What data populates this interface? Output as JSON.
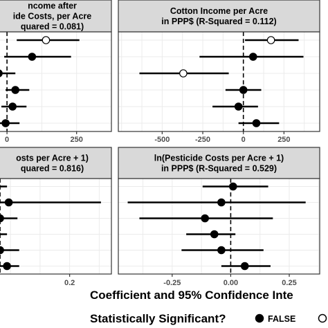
{
  "chart_data": [
    {
      "type": "scatter",
      "panel": "top-left",
      "title_lines": [
        "ncome after",
        "ide Costs, per Acre",
        "quared = 0.081)"
      ],
      "x_ticks": [
        0,
        250
      ],
      "x_ticks_text": [
        "0",
        "250"
      ],
      "xlim": [
        -50,
        375
      ],
      "grid": true,
      "points": [
        {
          "row": 1,
          "est": 140,
          "lo": 35,
          "hi": 260,
          "significant": true
        },
        {
          "row": 2,
          "est": 90,
          "lo": -10,
          "hi": 230,
          "significant": false
        },
        {
          "row": 3,
          "est": -30,
          "lo": -100,
          "hi": 30,
          "significant": false
        },
        {
          "row": 4,
          "est": 30,
          "lo": -5,
          "hi": 80,
          "significant": false
        },
        {
          "row": 5,
          "est": 20,
          "lo": -20,
          "hi": 70,
          "significant": false
        },
        {
          "row": 6,
          "est": -5,
          "lo": -40,
          "hi": 45,
          "significant": false
        }
      ]
    },
    {
      "type": "scatter",
      "panel": "top-right",
      "title_lines": [
        "Cotton Income per Acre",
        "in PPP$ (R-Squared = 0.112)"
      ],
      "x_ticks": [
        -500,
        -250,
        0,
        250
      ],
      "x_ticks_text": [
        "-500",
        "-250",
        "0",
        "250"
      ],
      "xlim": [
        -770,
        470
      ],
      "grid": true,
      "points": [
        {
          "row": 1,
          "est": 170,
          "lo": 10,
          "hi": 340,
          "significant": true
        },
        {
          "row": 2,
          "est": 60,
          "lo": -270,
          "hi": 370,
          "significant": false
        },
        {
          "row": 3,
          "est": -370,
          "lo": -640,
          "hi": -90,
          "significant": true
        },
        {
          "row": 4,
          "est": 0,
          "lo": -110,
          "hi": 110,
          "significant": false
        },
        {
          "row": 5,
          "est": -30,
          "lo": -190,
          "hi": 90,
          "significant": false
        },
        {
          "row": 6,
          "est": 80,
          "lo": -30,
          "hi": 220,
          "significant": false
        }
      ]
    },
    {
      "type": "scatter",
      "panel": "bottom-left",
      "title_lines": [
        "osts per Acre + 1)",
        "quared = 0.816)"
      ],
      "x_ticks": [
        0.2
      ],
      "x_ticks_text": [
        "0.2"
      ],
      "xlim": [
        -0.02,
        0.32
      ],
      "grid": true,
      "points": [
        {
          "row": 1,
          "est": -0.01,
          "lo": -0.06,
          "hi": 0.02,
          "significant": false
        },
        {
          "row": 2,
          "est": 0.025,
          "lo": -0.05,
          "hi": 0.29,
          "significant": false
        },
        {
          "row": 3,
          "est": 0.0,
          "lo": -0.05,
          "hi": 0.05,
          "significant": false
        },
        {
          "row": 4,
          "est": -0.01,
          "lo": -0.06,
          "hi": 0.02,
          "significant": false
        },
        {
          "row": 5,
          "est": 0.0,
          "lo": -0.04,
          "hi": 0.055,
          "significant": false
        },
        {
          "row": 6,
          "est": 0.02,
          "lo": -0.03,
          "hi": 0.055,
          "significant": false
        }
      ]
    },
    {
      "type": "scatter",
      "panel": "bottom-right",
      "title_lines": [
        "ln(Pesticide Costs per Acre + 1)",
        "in PPP$ (R-Squared = 0.529)"
      ],
      "x_ticks": [
        -0.25,
        0.0,
        0.25
      ],
      "x_ticks_text": [
        "-0.25",
        "0.00",
        "0.25"
      ],
      "xlim": [
        -0.48,
        0.38
      ],
      "grid": true,
      "points": [
        {
          "row": 1,
          "est": 0.01,
          "lo": -0.12,
          "hi": 0.16,
          "significant": false
        },
        {
          "row": 2,
          "est": -0.04,
          "lo": -0.44,
          "hi": 0.32,
          "significant": false
        },
        {
          "row": 3,
          "est": -0.11,
          "lo": -0.39,
          "hi": 0.18,
          "significant": false
        },
        {
          "row": 4,
          "est": -0.07,
          "lo": -0.19,
          "hi": 0.02,
          "significant": false
        },
        {
          "row": 5,
          "est": -0.04,
          "lo": -0.21,
          "hi": 0.14,
          "significant": false
        },
        {
          "row": 6,
          "est": 0.06,
          "lo": -0.04,
          "hi": 0.17,
          "significant": false
        }
      ]
    }
  ],
  "caption": "Coefficient and 95% Confidence Inte",
  "legend": {
    "title": "Statistically Significant?",
    "items": [
      {
        "label": "FALSE",
        "filled": true
      },
      {
        "label": "",
        "filled": false
      }
    ]
  },
  "colors": {
    "point_false": "#000000",
    "point_true": "#ffffff",
    "strip_bg": "#d9d9d9",
    "grid": "#ebebeb",
    "panel_border": "#333333",
    "tick_text": "#4d4d4d"
  }
}
